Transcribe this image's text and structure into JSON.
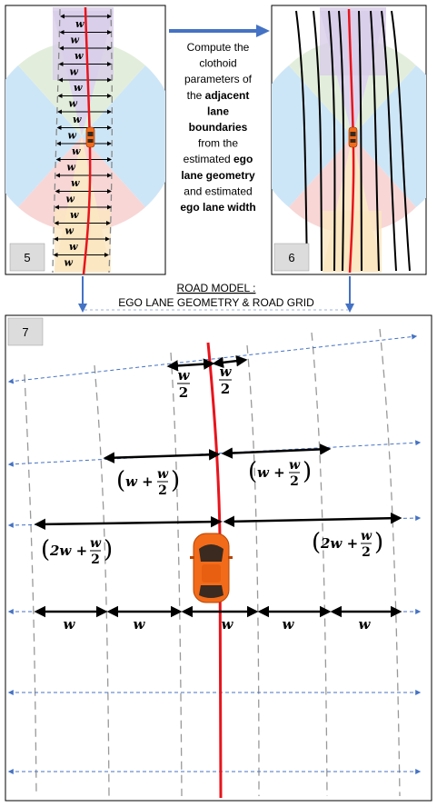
{
  "panels": {
    "p5": {
      "number": "5"
    },
    "p6": {
      "number": "6"
    },
    "p7": {
      "number": "7"
    }
  },
  "description_lines": [
    [
      {
        "t": "Compute the",
        "b": false
      }
    ],
    [
      {
        "t": "clothoid",
        "b": false
      }
    ],
    [
      {
        "t": "parameters of",
        "b": false
      }
    ],
    [
      {
        "t": "the ",
        "b": false
      },
      {
        "t": "adjacent",
        "b": true
      }
    ],
    [
      {
        "t": "lane",
        "b": true
      }
    ],
    [
      {
        "t": "boundaries",
        "b": true
      }
    ],
    [
      {
        "t": "from the",
        "b": false
      }
    ],
    [
      {
        "t": "estimated ",
        "b": false
      },
      {
        "t": "ego",
        "b": true
      }
    ],
    [
      {
        "t": "lane geometry",
        "b": true
      }
    ],
    [
      {
        "t": "and estimated",
        "b": false
      }
    ],
    [
      {
        "t": "ego lane width",
        "b": true
      }
    ]
  ],
  "road_model": {
    "title": "ROAD MODEL :",
    "subtitle": "EGO LANE GEOMETRY & ROAD GRID"
  },
  "width_symbol": "w",
  "labels": {
    "half": {
      "num": "w",
      "den": "2"
    },
    "w_plus_half": {
      "prefix": "w +",
      "num": "w",
      "den": "2"
    },
    "two_w_plus_half": {
      "prefix": "2w +",
      "num": "w",
      "den": "2"
    }
  },
  "colors": {
    "ego_lane": "#e8141c",
    "grid_arrows": "#4472c4",
    "measure_arrows": "#000000",
    "car": "#f26b1a"
  }
}
